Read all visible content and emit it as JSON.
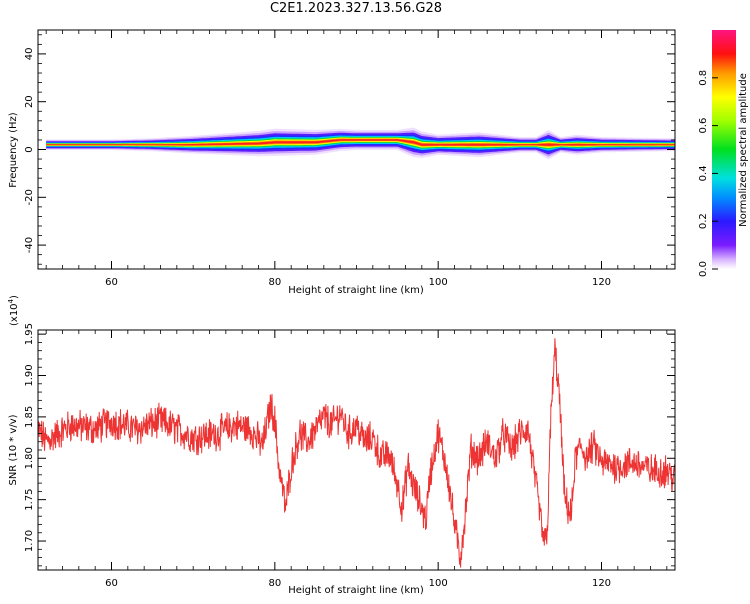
{
  "title": "C2E1.2023.327.13.56.G28",
  "colors": {
    "snr_line": "#ee3333",
    "band_core": "#ff2020",
    "background": "#ffffff"
  },
  "chart_data": [
    {
      "type": "heatmap",
      "title": "",
      "xlabel": "Height of straight line (km)",
      "ylabel": "Frequency (Hz)",
      "xlim": [
        51,
        129
      ],
      "ylim": [
        -50,
        50
      ],
      "x_ticks": [
        "60",
        "80",
        "100",
        "120"
      ],
      "y_ticks": [
        "40",
        "20",
        "0",
        "-20",
        "-40"
      ],
      "colorbar": {
        "label": "Normalized spectral amplitude",
        "range": [
          0.0,
          1.0
        ],
        "ticks": [
          "0.0",
          "0.2",
          "0.4",
          "0.6",
          "0.8"
        ]
      },
      "ridge": {
        "x": [
          52,
          60,
          70,
          78,
          80,
          85,
          88,
          95,
          97,
          98,
          105,
          112,
          113.5,
          115,
          120,
          128
        ],
        "frequency_hz": [
          2,
          2,
          2,
          2.5,
          3,
          3,
          4,
          4,
          3,
          2,
          2,
          2,
          2,
          2,
          2,
          2
        ]
      },
      "spread": {
        "x": [
          52,
          60,
          65,
          70,
          75,
          80,
          85,
          90,
          95,
          97,
          100,
          105,
          110,
          112,
          113.5,
          115,
          117,
          120,
          128
        ],
        "width_hz": [
          1,
          1,
          1.5,
          2.5,
          3.5,
          4.5,
          4,
          3,
          3,
          5,
          3,
          4,
          2,
          2,
          5,
          2,
          3,
          2,
          1.5
        ]
      }
    },
    {
      "type": "line",
      "title": "",
      "xlabel": "Height of straight line (km)",
      "ylabel": "SNR (10 * v/v)",
      "y_multiplier": "(x10^4)",
      "xlim": [
        51,
        129
      ],
      "ylim": [
        1.665,
        1.955
      ],
      "x_ticks": [
        "60",
        "80",
        "100",
        "120"
      ],
      "y_ticks": [
        "1.70",
        "1.75",
        "1.80",
        "1.85",
        "1.90",
        "1.95"
      ],
      "series": [
        {
          "x": [
            51,
            52,
            55,
            58,
            60,
            63,
            66,
            70,
            73,
            75,
            77,
            78.5,
            79.5,
            80,
            80.5,
            81,
            81.3,
            82,
            83,
            84,
            85,
            86,
            87,
            88,
            89,
            90,
            91,
            92,
            93,
            94,
            95,
            95.6,
            96.3,
            97,
            98,
            98.5,
            99,
            100,
            101,
            102,
            102.7,
            103.3,
            104,
            105,
            106,
            107,
            108,
            109,
            110,
            111,
            111.8,
            112.5,
            113,
            113.4,
            113.8,
            114.3,
            114.8,
            115.5,
            116.3,
            116.8,
            117.5,
            118.2,
            119,
            120,
            122,
            124,
            126,
            128,
            129
          ],
          "y": [
            1.835,
            1.82,
            1.84,
            1.835,
            1.845,
            1.835,
            1.845,
            1.825,
            1.83,
            1.84,
            1.835,
            1.815,
            1.865,
            1.845,
            1.79,
            1.76,
            1.74,
            1.79,
            1.83,
            1.82,
            1.835,
            1.85,
            1.84,
            1.855,
            1.83,
            1.84,
            1.82,
            1.825,
            1.8,
            1.805,
            1.77,
            1.74,
            1.79,
            1.765,
            1.74,
            1.725,
            1.78,
            1.83,
            1.79,
            1.72,
            1.68,
            1.73,
            1.81,
            1.8,
            1.82,
            1.8,
            1.83,
            1.81,
            1.83,
            1.835,
            1.78,
            1.73,
            1.695,
            1.72,
            1.85,
            1.93,
            1.88,
            1.75,
            1.73,
            1.8,
            1.815,
            1.8,
            1.815,
            1.795,
            1.79,
            1.795,
            1.785,
            1.785,
            1.775
          ]
        }
      ]
    }
  ]
}
